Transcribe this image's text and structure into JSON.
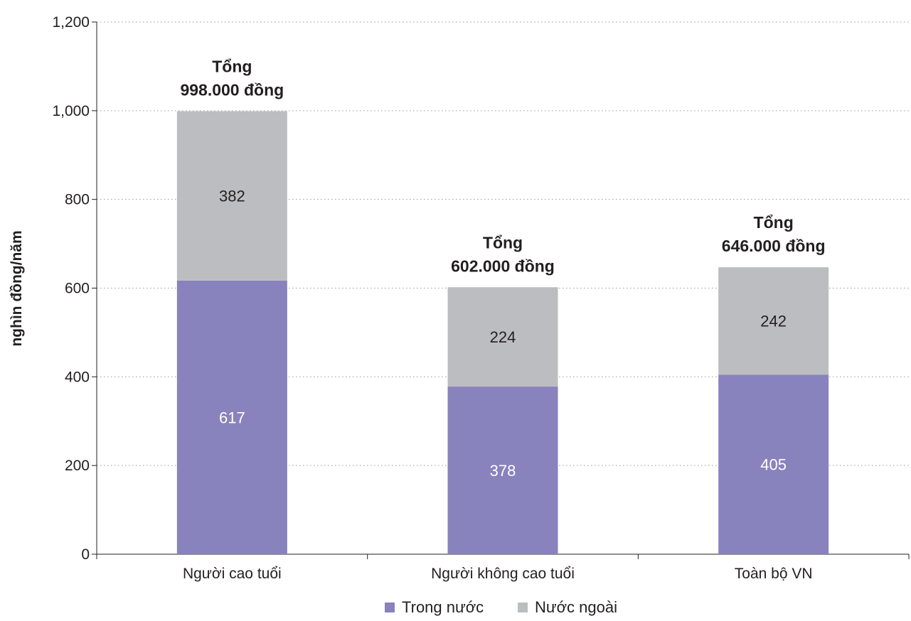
{
  "chart_data": {
    "type": "bar",
    "stacked": true,
    "categories": [
      "Người cao tuổi",
      "Người không cao tuổi",
      "Toàn bộ VN"
    ],
    "series": [
      {
        "name": "Trong nước",
        "values": [
          617,
          378,
          405
        ],
        "color": "#8882bd",
        "label_color": "#ffffff"
      },
      {
        "name": "Nước ngoài",
        "values": [
          382,
          224,
          242
        ],
        "color": "#bcbdc0",
        "label_color": "#231f20"
      }
    ],
    "totals": [
      {
        "line1": "Tổng",
        "line2": "998.000 đồng"
      },
      {
        "line1": "Tổng",
        "line2": "602.000 đồng"
      },
      {
        "line1": "Tổng",
        "line2": "646.000 đồng"
      }
    ],
    "ylabel": "nghìn đồng/năm",
    "ylim": [
      0,
      1200
    ],
    "yticks": [
      0,
      200,
      400,
      600,
      800,
      1000,
      1200
    ],
    "ytick_labels": [
      "0",
      "200",
      "400",
      "600",
      "800",
      "1,000",
      "1,200"
    ],
    "grid": true,
    "legend_position": "bottom"
  }
}
